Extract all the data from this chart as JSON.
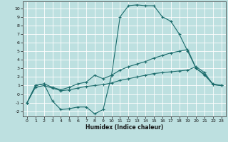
{
  "title": "",
  "xlabel": "Humidex (Indice chaleur)",
  "bg_color": "#bde0e0",
  "grid_color": "#ffffff",
  "line_color": "#1a6b6b",
  "xlim": [
    -0.5,
    23.5
  ],
  "ylim": [
    -2.6,
    10.8
  ],
  "xticks": [
    0,
    1,
    2,
    3,
    4,
    5,
    6,
    7,
    8,
    9,
    10,
    11,
    12,
    13,
    14,
    15,
    16,
    17,
    18,
    19,
    20,
    21,
    22,
    23
  ],
  "yticks": [
    -2,
    -1,
    0,
    1,
    2,
    3,
    4,
    5,
    6,
    7,
    8,
    9,
    10
  ],
  "line1_x": [
    0,
    1,
    2,
    3,
    4,
    5,
    6,
    7,
    8,
    9,
    10,
    11,
    12,
    13,
    14,
    15,
    16,
    17,
    18,
    19,
    20,
    21,
    22,
    23
  ],
  "line1_y": [
    -1.0,
    1.0,
    1.2,
    -0.8,
    -1.8,
    -1.7,
    -1.5,
    -1.5,
    -2.3,
    -1.8,
    2.2,
    9.0,
    10.3,
    10.4,
    10.3,
    10.3,
    9.0,
    8.5,
    7.0,
    5.0,
    3.0,
    2.2,
    1.2,
    1.0
  ],
  "line2_x": [
    0,
    1,
    2,
    3,
    4,
    5,
    6,
    7,
    8,
    9,
    10,
    11,
    12,
    13,
    14,
    15,
    16,
    17,
    18,
    19,
    20,
    21,
    22,
    23
  ],
  "line2_y": [
    -1.0,
    1.0,
    1.2,
    0.8,
    0.5,
    0.8,
    1.2,
    1.4,
    2.2,
    1.8,
    2.2,
    2.8,
    3.2,
    3.5,
    3.8,
    4.2,
    4.5,
    4.8,
    5.0,
    5.2,
    3.0,
    2.3,
    1.1,
    1.0
  ],
  "line3_x": [
    0,
    1,
    2,
    3,
    4,
    5,
    6,
    7,
    8,
    9,
    10,
    11,
    12,
    13,
    14,
    15,
    16,
    17,
    18,
    19,
    20,
    21,
    22,
    23
  ],
  "line3_y": [
    -1.0,
    0.8,
    1.0,
    0.7,
    0.4,
    0.5,
    0.7,
    0.9,
    1.0,
    1.1,
    1.3,
    1.6,
    1.8,
    2.0,
    2.2,
    2.4,
    2.5,
    2.6,
    2.7,
    2.8,
    3.2,
    2.5,
    1.1,
    1.0
  ]
}
